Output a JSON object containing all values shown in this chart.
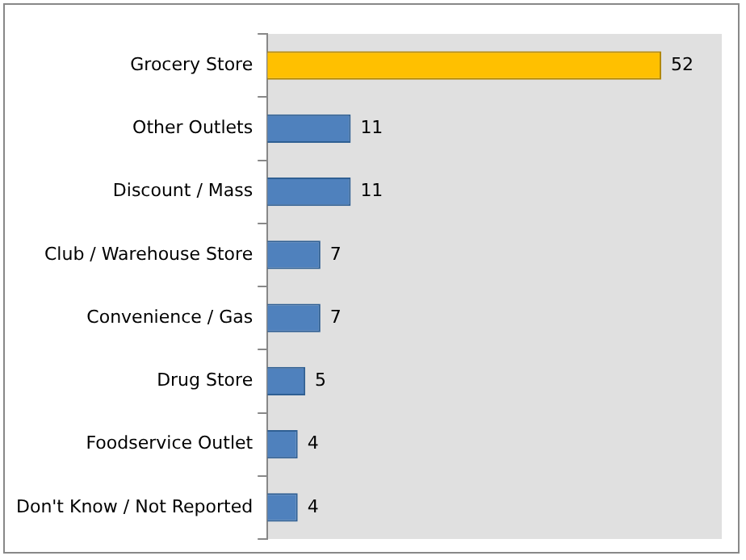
{
  "chart_data": {
    "type": "bar",
    "orientation": "horizontal",
    "categories": [
      "Grocery Store",
      "Other Outlets",
      "Discount / Mass",
      "Club / Warehouse Store",
      "Convenience / Gas",
      "Drug Store",
      "Foodservice Outlet",
      "Don't Know / Not Reported"
    ],
    "values": [
      52,
      11,
      11,
      7,
      7,
      5,
      4,
      4
    ],
    "colors": [
      "#ffc000",
      "#4f81bd",
      "#4f81bd",
      "#4f81bd",
      "#4f81bd",
      "#4f81bd",
      "#4f81bd",
      "#4f81bd"
    ],
    "xlim": [
      0,
      60
    ],
    "data_labels": true,
    "grid": false,
    "legend": false
  }
}
